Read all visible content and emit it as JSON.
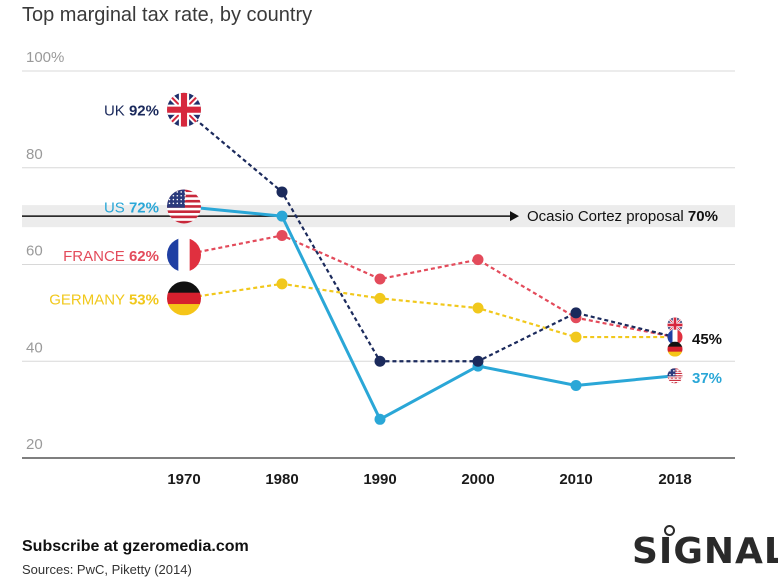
{
  "title": "Top marginal tax rate, by country",
  "chart_data": {
    "type": "line",
    "title": "Top marginal tax rate, by country",
    "x": [
      "1970",
      "1980",
      "1990",
      "2000",
      "2010",
      "2018"
    ],
    "ylim": [
      20,
      100
    ],
    "yticks": [
      "100%",
      "80",
      "60",
      "40",
      "20"
    ],
    "grid": true,
    "series": [
      {
        "name": "UK",
        "values": [
          92,
          75,
          40,
          40,
          50,
          45
        ],
        "color": "#1b2a5c",
        "dashed": true,
        "label_value": "92%"
      },
      {
        "name": "US",
        "values": [
          72,
          70,
          28,
          39,
          35,
          37
        ],
        "color": "#2aa7d7",
        "dashed": false,
        "label_value": "72%"
      },
      {
        "name": "FRANCE",
        "values": [
          62,
          66,
          57,
          61,
          49,
          45
        ],
        "color": "#e34b5b",
        "dashed": true,
        "label_value": "62%"
      },
      {
        "name": "GERMANY",
        "values": [
          53,
          56,
          53,
          51,
          45,
          45
        ],
        "color": "#f1c81c",
        "dashed": true,
        "label_value": "53%"
      }
    ],
    "reference_line": {
      "value": 70,
      "label": "Ocasio Cortez proposal",
      "label_value": "70%"
    },
    "end_labels": {
      "shared": "45%",
      "us": "37%"
    }
  },
  "flags": {
    "uk": "uk-flag",
    "us": "us-flag",
    "france": "france-flag",
    "germany": "germany-flag"
  },
  "footer": {
    "subscribe": "Subscribe at gzeromedia.com",
    "sources": "Sources: PwC, Piketty (2014)"
  },
  "brand": "SIGNAL"
}
